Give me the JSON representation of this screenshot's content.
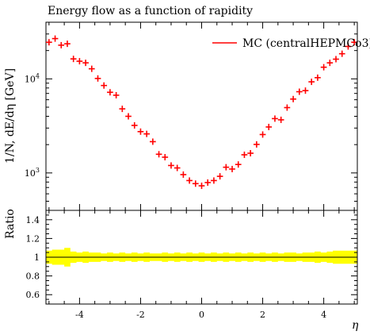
{
  "chart_data": [
    {
      "type": "scatter",
      "title": "Energy flow as a function of rapidity",
      "ylabel": "1/N, dE/dη [GeV]",
      "xlabel": "",
      "xlim": [
        -5.1,
        5.1
      ],
      "ylim": [
        400,
        40000
      ],
      "y_scale": "log",
      "y_ticks": [
        {
          "value": 1000,
          "base": "10",
          "exp": "3"
        },
        {
          "value": 10000,
          "base": "10",
          "exp": "4"
        }
      ],
      "legend": {
        "placement": "top-right",
        "entries": [
          "MC (centralHEPMCo3)"
        ]
      },
      "series": [
        {
          "name": "MC (centralHEPMCo3)",
          "color": "#ff0000",
          "x": [
            -5.0,
            -4.8,
            -4.6,
            -4.4,
            -4.2,
            -4.0,
            -3.8,
            -3.6,
            -3.4,
            -3.2,
            -3.0,
            -2.8,
            -2.6,
            -2.4,
            -2.2,
            -2.0,
            -1.8,
            -1.6,
            -1.4,
            -1.2,
            -1.0,
            -0.8,
            -0.6,
            -0.4,
            -0.2,
            0.0,
            0.2,
            0.4,
            0.6,
            0.8,
            1.0,
            1.2,
            1.4,
            1.6,
            1.8,
            2.0,
            2.2,
            2.4,
            2.6,
            2.8,
            3.0,
            3.2,
            3.4,
            3.6,
            3.8,
            4.0,
            4.2,
            4.4,
            4.6,
            4.8,
            5.0
          ],
          "y": [
            24500,
            26800,
            22800,
            23600,
            16300,
            15400,
            14800,
            12800,
            10100,
            8500,
            7200,
            6700,
            4800,
            4000,
            3200,
            2750,
            2600,
            2150,
            1580,
            1470,
            1200,
            1130,
            960,
            830,
            770,
            730,
            790,
            830,
            920,
            1150,
            1100,
            1230,
            1560,
            1620,
            2010,
            2560,
            3080,
            3780,
            3670,
            4950,
            6100,
            7300,
            7500,
            9300,
            10300,
            13300,
            14800,
            16200,
            18500,
            22100,
            24500
          ]
        }
      ]
    },
    {
      "type": "area",
      "ylabel": "Ratio",
      "xlabel": "η",
      "xlim": [
        -5.1,
        5.1
      ],
      "ylim": [
        0.5,
        1.5
      ],
      "x_ticks": [
        "-4",
        "-2",
        "0",
        "2",
        "4"
      ],
      "y_ticks": [
        "0.6",
        "0.8",
        "1",
        "1.2",
        "1.4"
      ],
      "reference_line": 1.0,
      "band_color": "#ffff00",
      "band": {
        "x": [
          -5.0,
          -4.8,
          -4.6,
          -4.4,
          -4.2,
          -4.0,
          -3.8,
          -3.6,
          -3.4,
          -3.2,
          -3.0,
          -2.8,
          -2.6,
          -2.4,
          -2.2,
          -2.0,
          -1.8,
          -1.6,
          -1.4,
          -1.2,
          -1.0,
          -0.8,
          -0.6,
          -0.4,
          -0.2,
          0.0,
          0.2,
          0.4,
          0.6,
          0.8,
          1.0,
          1.2,
          1.4,
          1.6,
          1.8,
          2.0,
          2.2,
          2.4,
          2.6,
          2.8,
          3.0,
          3.2,
          3.4,
          3.6,
          3.8,
          4.0,
          4.2,
          4.4,
          4.6,
          4.8,
          5.0
        ],
        "upper": [
          1.07,
          1.08,
          1.08,
          1.1,
          1.06,
          1.05,
          1.06,
          1.05,
          1.05,
          1.04,
          1.05,
          1.04,
          1.05,
          1.04,
          1.05,
          1.04,
          1.05,
          1.04,
          1.04,
          1.05,
          1.04,
          1.05,
          1.04,
          1.05,
          1.04,
          1.05,
          1.04,
          1.05,
          1.04,
          1.05,
          1.04,
          1.05,
          1.04,
          1.05,
          1.04,
          1.05,
          1.04,
          1.05,
          1.04,
          1.05,
          1.05,
          1.04,
          1.05,
          1.05,
          1.06,
          1.05,
          1.06,
          1.07,
          1.07,
          1.07,
          1.07
        ],
        "lower": [
          0.93,
          0.92,
          0.92,
          0.9,
          0.94,
          0.95,
          0.94,
          0.95,
          0.95,
          0.96,
          0.95,
          0.96,
          0.95,
          0.96,
          0.95,
          0.96,
          0.95,
          0.96,
          0.96,
          0.95,
          0.96,
          0.95,
          0.96,
          0.95,
          0.96,
          0.95,
          0.96,
          0.95,
          0.96,
          0.95,
          0.96,
          0.95,
          0.96,
          0.95,
          0.96,
          0.95,
          0.96,
          0.95,
          0.96,
          0.95,
          0.95,
          0.96,
          0.95,
          0.95,
          0.94,
          0.95,
          0.94,
          0.93,
          0.93,
          0.93,
          0.93
        ]
      }
    }
  ]
}
